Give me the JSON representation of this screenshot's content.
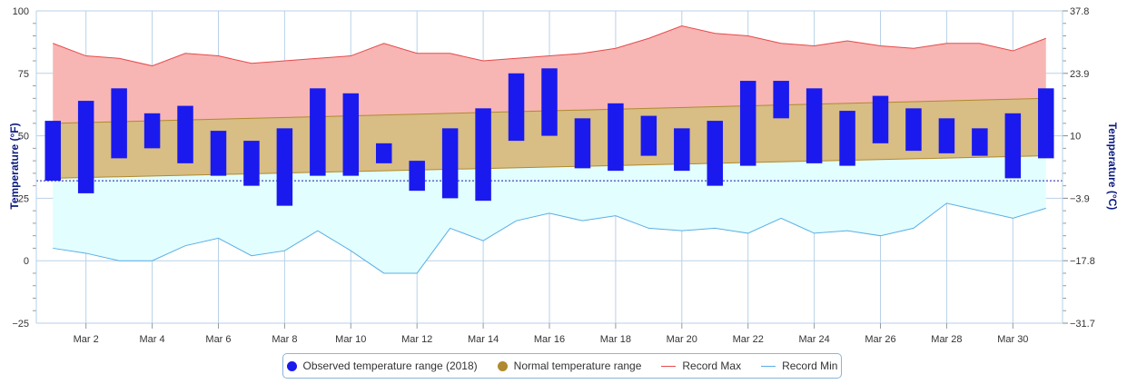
{
  "chart_data": {
    "type": "bar",
    "title": "",
    "xlabel": "",
    "ylabel": "Temperature (°F)",
    "y2label": "Temperature (°C)",
    "ylim": [
      -25,
      100
    ],
    "yticks": [
      "100",
      "75",
      "50",
      "25",
      "0",
      "−25"
    ],
    "y2ticks": [
      "37.8",
      "23.9",
      "10",
      "−3.9",
      "−17.8",
      "−31.7"
    ],
    "x_tick_labels": [
      {
        "day": 2,
        "label": "Mar 2"
      },
      {
        "day": 4,
        "label": "Mar 4"
      },
      {
        "day": 6,
        "label": "Mar 6"
      },
      {
        "day": 8,
        "label": "Mar 8"
      },
      {
        "day": 10,
        "label": "Mar 10"
      },
      {
        "day": 12,
        "label": "Mar 12"
      },
      {
        "day": 14,
        "label": "Mar 14"
      },
      {
        "day": 16,
        "label": "Mar 16"
      },
      {
        "day": 18,
        "label": "Mar 18"
      },
      {
        "day": 20,
        "label": "Mar 20"
      },
      {
        "day": 22,
        "label": "Mar 22"
      },
      {
        "day": 24,
        "label": "Mar 24"
      },
      {
        "day": 26,
        "label": "Mar 26"
      },
      {
        "day": 28,
        "label": "Mar 28"
      },
      {
        "day": 30,
        "label": "Mar 30"
      }
    ],
    "days": [
      1,
      2,
      3,
      4,
      5,
      6,
      7,
      8,
      9,
      10,
      11,
      12,
      13,
      14,
      15,
      16,
      17,
      18,
      19,
      20,
      21,
      22,
      23,
      24,
      25,
      26,
      27,
      28,
      29,
      30,
      31
    ],
    "freezing_line": 32,
    "series": [
      {
        "name": "Observed temperature range (2018)",
        "type": "columnrange",
        "color": "#1a1aee",
        "low": [
          32,
          27,
          41,
          45,
          39,
          34,
          30,
          22,
          34,
          34,
          39,
          28,
          25,
          24,
          48,
          50,
          37,
          36,
          42,
          36,
          30,
          38,
          57,
          39,
          38,
          47,
          44,
          43,
          42,
          33,
          41
        ],
        "high": [
          56,
          64,
          69,
          59,
          62,
          52,
          48,
          53,
          69,
          67,
          47,
          40,
          53,
          61,
          75,
          77,
          57,
          63,
          58,
          53,
          56,
          72,
          72,
          69,
          60,
          66,
          61,
          57,
          53,
          59,
          69
        ]
      },
      {
        "name": "Normal temperature range",
        "type": "arearange",
        "color": "#b08a2e",
        "low_start": 33,
        "low_end": 42,
        "high_start": 55,
        "high_end": 65
      },
      {
        "name": "Record Max",
        "type": "line",
        "color": "#e84a4a",
        "values": [
          87,
          82,
          81,
          78,
          83,
          82,
          79,
          80,
          81,
          82,
          87,
          83,
          83,
          80,
          81,
          82,
          83,
          85,
          89,
          94,
          91,
          90,
          87,
          86,
          88,
          86,
          85,
          87,
          87,
          84,
          89
        ]
      },
      {
        "name": "Record Min",
        "type": "line",
        "color": "#5aaee6",
        "values": [
          5,
          3,
          0,
          0,
          6,
          9,
          2,
          4,
          12,
          4,
          -5,
          -5,
          13,
          8,
          16,
          19,
          16,
          18,
          13,
          12,
          13,
          11,
          17,
          11,
          12,
          10,
          13,
          23,
          20,
          17,
          21
        ]
      }
    ],
    "legend_position": "bottom-center",
    "grid": true
  },
  "colors": {
    "record_max_fill": "#f7b6b4",
    "normal_fill": "#d8bd84",
    "record_min_fill": "#e2fefe",
    "freezing_line": "#1a1aa8",
    "grid": "#b7d2e8",
    "axis_title": "#0a1a80"
  }
}
